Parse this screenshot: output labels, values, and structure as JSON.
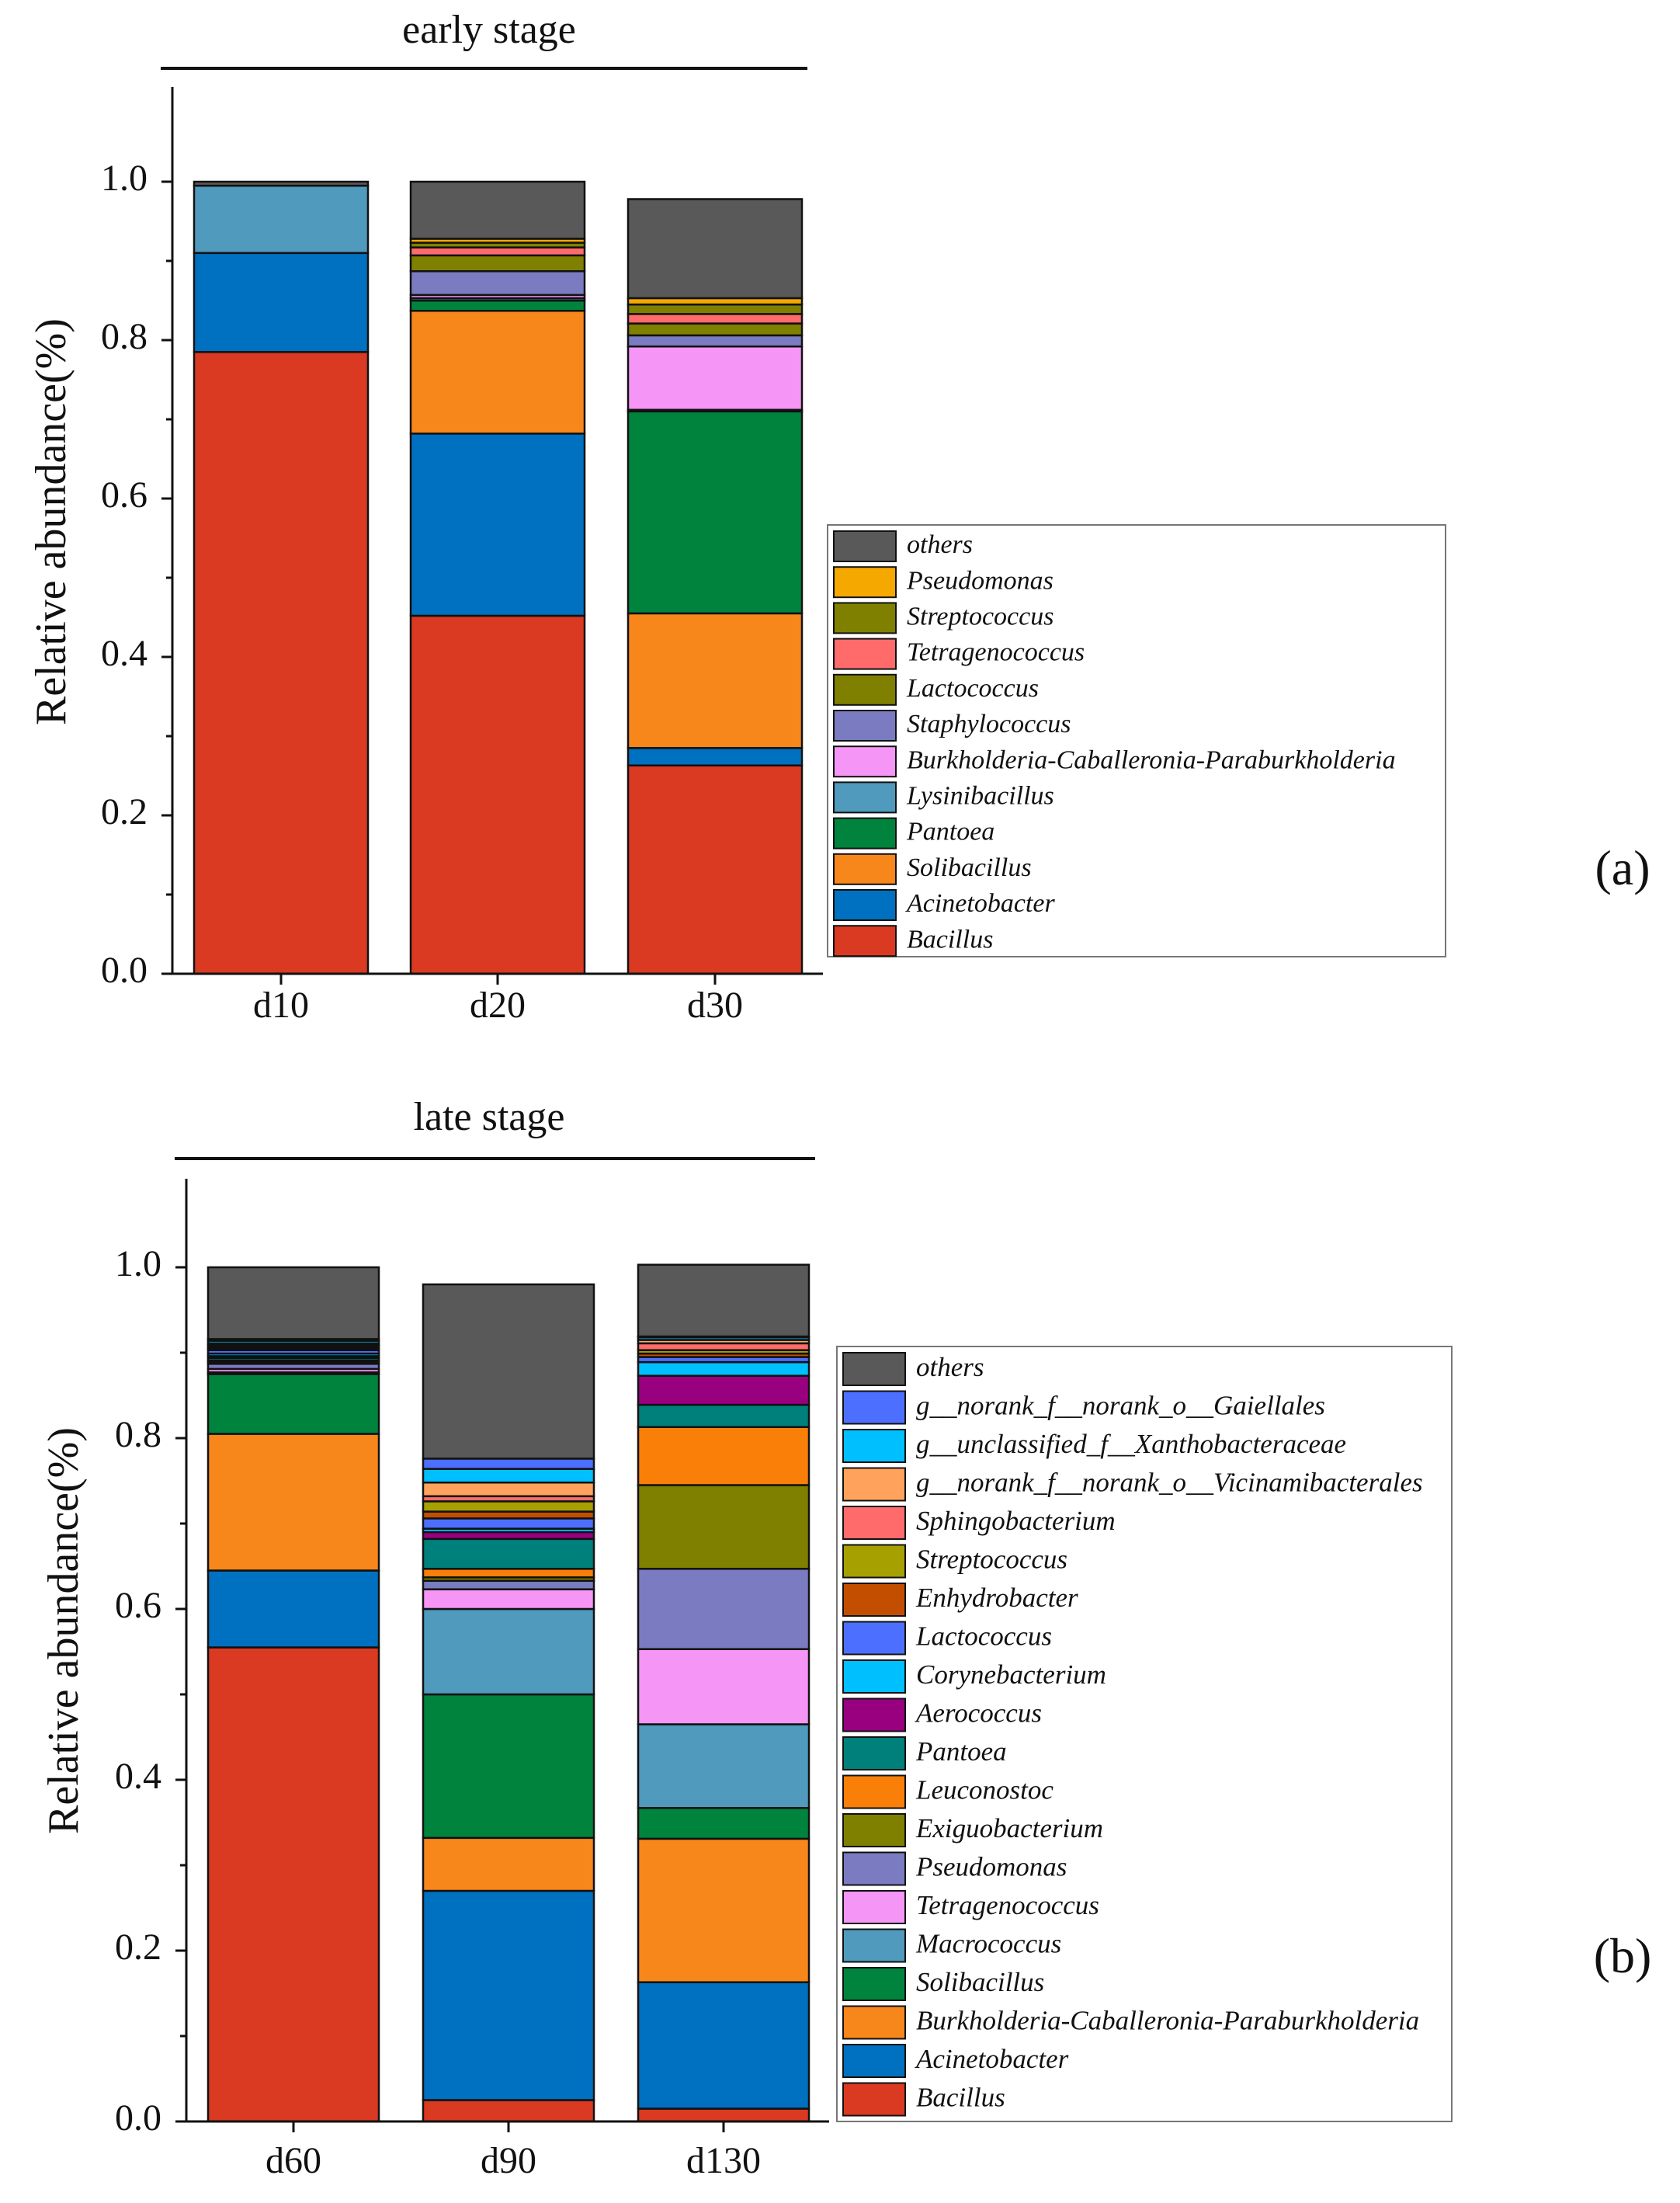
{
  "charts": [
    {
      "panel_label": "(a)",
      "stage_title": "early stage",
      "ylabel": "Relative abundance(%)",
      "yticks": [
        "0.0",
        "0.2",
        "0.4",
        "0.6",
        "0.8",
        "1.0"
      ],
      "legend_order": [
        "others",
        "Pseudomonas",
        "Streptococcus",
        "Tetragenococcus",
        "Lactococcus",
        "Staphylococcus",
        "Burkholderia-Caballeronia-Paraburkholderia",
        "Lysinibacillus",
        "Pantoea",
        "Solibacillus",
        "Acinetobacter",
        "Bacillus"
      ]
    },
    {
      "panel_label": "(b)",
      "stage_title": "late stage",
      "ylabel": "Relative abundance(%)",
      "yticks": [
        "0.0",
        "0.2",
        "0.4",
        "0.6",
        "0.8",
        "1.0"
      ],
      "legend_order": [
        "others",
        "g__norank_f__norank_o__Gaiellales",
        "g__unclassified_f__Xanthobacteraceae",
        "g__norank_f__norank_o__Vicinamibacterales",
        "Sphingobacterium",
        "Streptococcus",
        "Enhydrobacter",
        "Lactococcus",
        "Corynebacterium",
        "Aerococcus",
        "Pantoea",
        "Leuconostoc",
        "Exiguobacterium",
        "Pseudomonas",
        "Tetragenococcus",
        "Macrococcus",
        "Solibacillus",
        "Burkholderia-Caballeronia-Paraburkholderia",
        "Acinetobacter",
        "Bacillus"
      ]
    }
  ],
  "chart_data": [
    {
      "type": "bar",
      "stacked": true,
      "title": "early stage",
      "xlabel": "",
      "ylabel": "Relative abundance(%)",
      "ylim": [
        0,
        1.1
      ],
      "categories": [
        "d10",
        "d20",
        "d30"
      ],
      "series": [
        {
          "name": "Bacillus",
          "color": "#D93A21",
          "values": [
            0.785,
            0.452,
            0.263
          ]
        },
        {
          "name": "Acinetobacter",
          "color": "#0070C0",
          "values": [
            0.125,
            0.23,
            0.022
          ]
        },
        {
          "name": "Solibacillus",
          "color": "#F7861B",
          "values": [
            0.0,
            0.155,
            0.17
          ]
        },
        {
          "name": "Pantoea",
          "color": "#00843D",
          "values": [
            0.0,
            0.013,
            0.255
          ]
        },
        {
          "name": "Lysinibacillus",
          "color": "#4F9ABD",
          "values": [
            0.085,
            0.003,
            0.002
          ]
        },
        {
          "name": "Burkholderia-Caballeronia-Paraburkholderia",
          "color": "#F595F5",
          "values": [
            0.0,
            0.004,
            0.08
          ]
        },
        {
          "name": "Staphylococcus",
          "color": "#7A7BC0",
          "values": [
            0.0,
            0.03,
            0.014
          ]
        },
        {
          "name": "Lactococcus",
          "color": "#7F7F00",
          "values": [
            0.0,
            0.02,
            0.015
          ]
        },
        {
          "name": "Tetragenococcus",
          "color": "#FF6B6B",
          "values": [
            0.0,
            0.01,
            0.012
          ]
        },
        {
          "name": "Streptococcus",
          "color": "#808000",
          "values": [
            0.0,
            0.006,
            0.012
          ]
        },
        {
          "name": "Pseudomonas",
          "color": "#F5A800",
          "values": [
            0.0,
            0.005,
            0.008
          ]
        },
        {
          "name": "others",
          "color": "#595959",
          "values": [
            0.005,
            0.072,
            0.125
          ]
        }
      ]
    },
    {
      "type": "bar",
      "stacked": true,
      "title": "late stage",
      "xlabel": "",
      "ylabel": "Relative abundance(%)",
      "ylim": [
        0,
        1.1
      ],
      "categories": [
        "d60",
        "d90",
        "d130"
      ],
      "series": [
        {
          "name": "Bacillus",
          "color": "#D93A21",
          "values": [
            0.555,
            0.025,
            0.015
          ]
        },
        {
          "name": "Acinetobacter",
          "color": "#0070C0",
          "values": [
            0.09,
            0.245,
            0.148
          ]
        },
        {
          "name": "Burkholderia-Caballeronia-Paraburkholderia",
          "color": "#F7861B",
          "values": [
            0.16,
            0.062,
            0.168
          ]
        },
        {
          "name": "Solibacillus",
          "color": "#00843D",
          "values": [
            0.07,
            0.168,
            0.036
          ]
        },
        {
          "name": "Macrococcus",
          "color": "#4F9ABD",
          "values": [
            0.002,
            0.1,
            0.098
          ]
        },
        {
          "name": "Tetragenococcus",
          "color": "#F595F5",
          "values": [
            0.004,
            0.023,
            0.088
          ]
        },
        {
          "name": "Pseudomonas",
          "color": "#7A7BC0",
          "values": [
            0.006,
            0.01,
            0.094
          ]
        },
        {
          "name": "Exiguobacterium",
          "color": "#7F7F00",
          "values": [
            0.002,
            0.004,
            0.098
          ]
        },
        {
          "name": "Leuconostoc",
          "color": "#F97F08",
          "values": [
            0.002,
            0.01,
            0.068
          ]
        },
        {
          "name": "Pantoea",
          "color": "#00807A",
          "values": [
            0.003,
            0.035,
            0.026
          ]
        },
        {
          "name": "Aerococcus",
          "color": "#990080",
          "values": [
            0.002,
            0.008,
            0.034
          ]
        },
        {
          "name": "Corynebacterium",
          "color": "#00BFFF",
          "values": [
            0.003,
            0.004,
            0.016
          ]
        },
        {
          "name": "Lactococcus",
          "color": "#4D6FFF",
          "values": [
            0.004,
            0.012,
            0.006
          ]
        },
        {
          "name": "Enhydrobacter",
          "color": "#C44E00",
          "values": [
            0.002,
            0.008,
            0.004
          ]
        },
        {
          "name": "Streptococcus",
          "color": "#A6A000",
          "values": [
            0.002,
            0.012,
            0.004
          ]
        },
        {
          "name": "Sphingobacterium",
          "color": "#FF6B6B",
          "values": [
            0.002,
            0.006,
            0.008
          ]
        },
        {
          "name": "g__norank_f__norank_o__Vicinamibacterales",
          "color": "#FFA35C",
          "values": [
            0.002,
            0.016,
            0.004
          ]
        },
        {
          "name": "g__unclassified_f__Xanthobacteraceae",
          "color": "#00BFFF",
          "values": [
            0.003,
            0.016,
            0.003
          ]
        },
        {
          "name": "g__norank_f__norank_o__Gaiellales",
          "color": "#4D6FFF",
          "values": [
            0.002,
            0.012,
            0.001
          ]
        },
        {
          "name": "others",
          "color": "#595959",
          "values": [
            0.084,
            0.204,
            0.084
          ]
        }
      ]
    }
  ]
}
